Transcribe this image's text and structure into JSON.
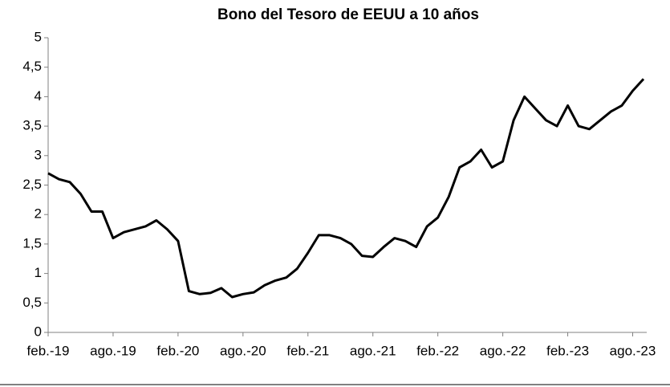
{
  "chart_data": {
    "type": "line",
    "title": "Bono del Tesoro de EEUU a 10 años",
    "categories": [
      "feb.-19",
      null,
      null,
      null,
      null,
      null,
      "ago.-19",
      null,
      null,
      null,
      null,
      null,
      "feb.-20",
      null,
      null,
      null,
      null,
      null,
      "ago.-20",
      null,
      null,
      null,
      null,
      null,
      "feb.-21",
      null,
      null,
      null,
      null,
      null,
      "ago.-21",
      null,
      null,
      null,
      null,
      null,
      "feb.-22",
      null,
      null,
      null,
      null,
      null,
      "ago.-22",
      null,
      null,
      null,
      null,
      null,
      "feb.-23",
      null,
      null,
      null,
      null,
      null,
      "ago.-23",
      null
    ],
    "values": [
      2.7,
      2.6,
      2.55,
      2.35,
      2.05,
      2.05,
      1.6,
      1.7,
      1.75,
      1.8,
      1.9,
      1.75,
      1.55,
      0.7,
      0.65,
      0.67,
      0.75,
      0.6,
      0.65,
      0.68,
      0.8,
      0.88,
      0.93,
      1.08,
      1.35,
      1.65,
      1.65,
      1.6,
      1.5,
      1.3,
      1.28,
      1.45,
      1.6,
      1.55,
      1.45,
      1.8,
      1.95,
      2.3,
      2.8,
      2.9,
      3.1,
      2.8,
      2.9,
      3.6,
      4.0,
      3.8,
      3.6,
      3.5,
      3.85,
      3.5,
      3.45,
      3.6,
      3.75,
      3.85,
      4.1,
      4.3
    ],
    "color": "#000000",
    "ylim": [
      0,
      5
    ],
    "yticks": [
      0,
      {
        "value": 0.5,
        "label": "0,5"
      },
      1,
      {
        "value": 1.5,
        "label": "1,5"
      },
      2,
      {
        "value": 2.5,
        "label": "2,5"
      },
      3,
      {
        "value": 3.5,
        "label": "3,5"
      },
      4,
      {
        "value": 4.5,
        "label": "4,5"
      },
      5
    ],
    "grid": false
  }
}
